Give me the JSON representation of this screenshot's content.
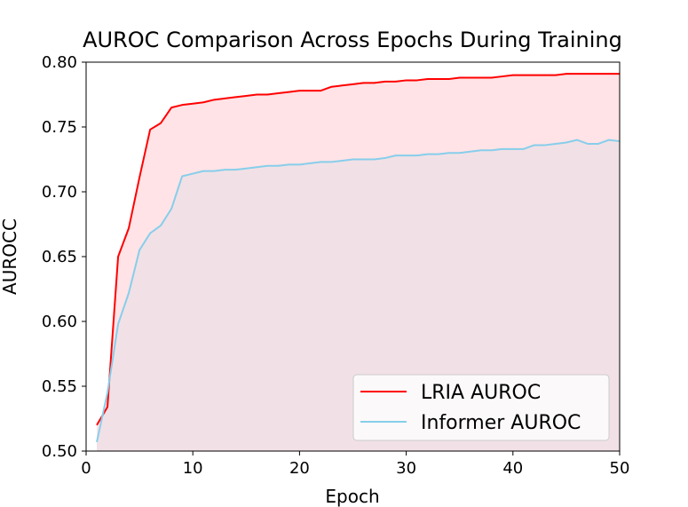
{
  "chart_data": {
    "type": "line",
    "title": "AUROC Comparison Across Epochs During Training",
    "xlabel": "Epoch",
    "ylabel": "AUROCC",
    "xlim": [
      0,
      50
    ],
    "ylim": [
      0.5,
      0.8
    ],
    "xticks": [
      0,
      10,
      20,
      30,
      40,
      50
    ],
    "yticks": [
      0.5,
      0.55,
      0.6,
      0.65,
      0.7,
      0.75,
      0.8
    ],
    "x": [
      1,
      2,
      3,
      4,
      5,
      6,
      7,
      8,
      9,
      10,
      11,
      12,
      13,
      14,
      15,
      16,
      17,
      18,
      19,
      20,
      21,
      22,
      23,
      24,
      25,
      26,
      27,
      28,
      29,
      30,
      31,
      32,
      33,
      34,
      35,
      36,
      37,
      38,
      39,
      40,
      41,
      42,
      43,
      44,
      45,
      46,
      47,
      48,
      49,
      50
    ],
    "series": [
      {
        "name": "LRIA AUROC",
        "color": "#ff0000",
        "fill": "#ffe0e3",
        "values": [
          0.52,
          0.534,
          0.65,
          0.672,
          0.711,
          0.748,
          0.753,
          0.765,
          0.767,
          0.768,
          0.769,
          0.771,
          0.772,
          0.773,
          0.774,
          0.775,
          0.775,
          0.776,
          0.777,
          0.778,
          0.778,
          0.778,
          0.781,
          0.782,
          0.783,
          0.784,
          0.784,
          0.785,
          0.785,
          0.786,
          0.786,
          0.787,
          0.787,
          0.787,
          0.788,
          0.788,
          0.788,
          0.788,
          0.789,
          0.79,
          0.79,
          0.79,
          0.79,
          0.79,
          0.791,
          0.791,
          0.791,
          0.791,
          0.791,
          0.791
        ]
      },
      {
        "name": "Informer AUROC",
        "color": "#87ceeb",
        "fill": "#f0e0e6",
        "values": [
          0.507,
          0.545,
          0.598,
          0.622,
          0.655,
          0.668,
          0.674,
          0.687,
          0.712,
          0.714,
          0.716,
          0.716,
          0.717,
          0.717,
          0.718,
          0.719,
          0.72,
          0.72,
          0.721,
          0.721,
          0.722,
          0.723,
          0.723,
          0.724,
          0.725,
          0.725,
          0.725,
          0.726,
          0.728,
          0.728,
          0.728,
          0.729,
          0.729,
          0.73,
          0.73,
          0.731,
          0.732,
          0.732,
          0.733,
          0.733,
          0.733,
          0.736,
          0.736,
          0.737,
          0.738,
          0.74,
          0.737,
          0.737,
          0.74,
          0.739
        ]
      }
    ],
    "legend_position": "lower-right"
  }
}
